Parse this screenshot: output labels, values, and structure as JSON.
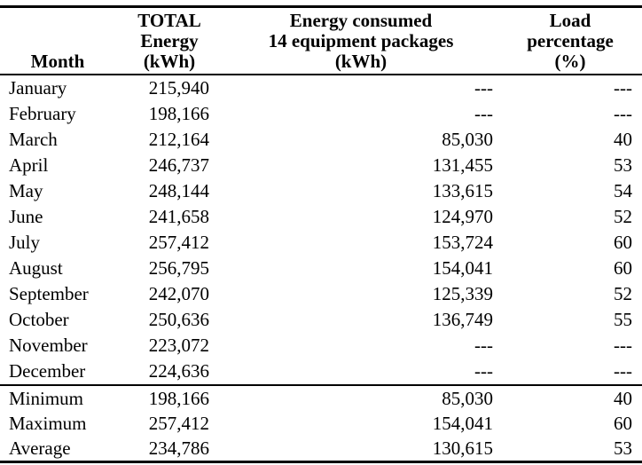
{
  "colors": {
    "text": "#000000",
    "background": "#ffffff",
    "rule": "#000000"
  },
  "table": {
    "missing_value_marker": "---",
    "header": [
      {
        "id": "month",
        "lines": [
          "Month"
        ]
      },
      {
        "id": "total-energy",
        "lines": [
          "TOTAL",
          "Energy",
          "(kWh)"
        ]
      },
      {
        "id": "energy-consumed",
        "lines": [
          "Energy consumed",
          "14 equipment packages",
          "(kWh)"
        ]
      },
      {
        "id": "load-percentage",
        "lines": [
          "Load",
          "percentage",
          "(%)"
        ]
      }
    ],
    "rows": [
      {
        "month": "January",
        "total_energy": "215,940",
        "energy_consumed": "---",
        "load_percentage": "---"
      },
      {
        "month": "February",
        "total_energy": "198,166",
        "energy_consumed": "---",
        "load_percentage": "---"
      },
      {
        "month": "March",
        "total_energy": "212,164",
        "energy_consumed": "85,030",
        "load_percentage": "40"
      },
      {
        "month": "April",
        "total_energy": "246,737",
        "energy_consumed": "131,455",
        "load_percentage": "53"
      },
      {
        "month": "May",
        "total_energy": "248,144",
        "energy_consumed": "133,615",
        "load_percentage": "54"
      },
      {
        "month": "June",
        "total_energy": "241,658",
        "energy_consumed": "124,970",
        "load_percentage": "52"
      },
      {
        "month": "July",
        "total_energy": "257,412",
        "energy_consumed": "153,724",
        "load_percentage": "60"
      },
      {
        "month": "August",
        "total_energy": "256,795",
        "energy_consumed": "154,041",
        "load_percentage": "60"
      },
      {
        "month": "September",
        "total_energy": "242,070",
        "energy_consumed": "125,339",
        "load_percentage": "52"
      },
      {
        "month": "October",
        "total_energy": "250,636",
        "energy_consumed": "136,749",
        "load_percentage": "55"
      },
      {
        "month": "November",
        "total_energy": "223,072",
        "energy_consumed": "---",
        "load_percentage": "---"
      },
      {
        "month": "December",
        "total_energy": "224,636",
        "energy_consumed": "---",
        "load_percentage": "---"
      }
    ],
    "summary_rows": [
      {
        "month": "Minimum",
        "total_energy": "198,166",
        "energy_consumed": "85,030",
        "load_percentage": "40"
      },
      {
        "month": "Maximum",
        "total_energy": "257,412",
        "energy_consumed": "154,041",
        "load_percentage": "60"
      },
      {
        "month": "Average",
        "total_energy": "234,786",
        "energy_consumed": "130,615",
        "load_percentage": "53"
      }
    ]
  }
}
